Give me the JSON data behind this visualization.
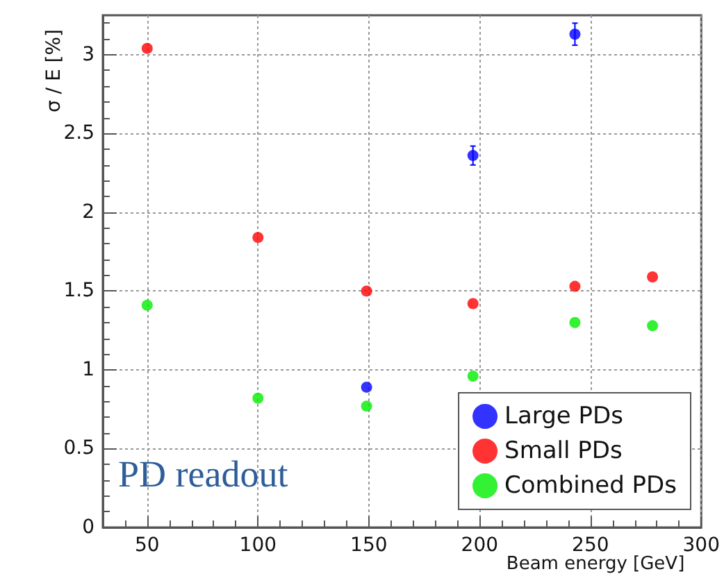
{
  "chart_data": {
    "type": "scatter",
    "xlabel": "Beam energy [GeV]",
    "ylabel": "σ / E [%]",
    "annotations": [
      "PD readout"
    ],
    "xlim": [
      30,
      300
    ],
    "xticks": [
      50,
      100,
      150,
      200,
      250,
      300
    ],
    "ylim": [
      0,
      3.25
    ],
    "yticks": [
      0,
      0.5,
      1,
      1.5,
      2,
      2.5,
      3
    ],
    "grid": true,
    "legend": "bottom right",
    "marker": "circle",
    "series": [
      {
        "name": "Large PDs",
        "color": "#0000ff",
        "x": [
          149,
          197,
          243
        ],
        "values": [
          0.89,
          2.36,
          3.13
        ],
        "errors": [
          null,
          0.06,
          0.07
        ]
      },
      {
        "name": "Small PDs",
        "color": "#ff0000",
        "x": [
          50,
          100,
          149,
          197,
          243,
          278
        ],
        "values": [
          3.04,
          1.84,
          1.5,
          1.42,
          1.53,
          1.59
        ]
      },
      {
        "name": "Combined PDs",
        "color": "#00ee00",
        "x": [
          50,
          100,
          149,
          197,
          243,
          278
        ],
        "values": [
          1.41,
          0.82,
          0.77,
          0.96,
          1.3,
          1.28
        ]
      }
    ]
  }
}
